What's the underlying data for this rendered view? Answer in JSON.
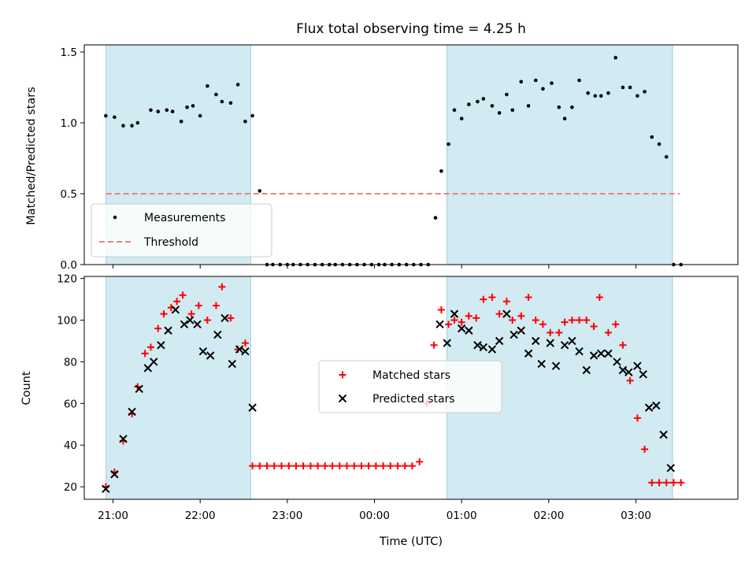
{
  "chart_data": [
    {
      "type": "scatter",
      "title": "Flux total observing time = 4.25 h",
      "ylabel": "Matched/Predicted stars",
      "xlabel": "",
      "ylim": [
        0,
        1.55
      ],
      "yticks": [
        "0.0",
        "0.5",
        "1.0",
        "1.5"
      ],
      "yticks_values": [
        0,
        0.5,
        1.0,
        1.5
      ],
      "x_ticks_hours": [
        21,
        22,
        23,
        24,
        25,
        26,
        27
      ],
      "x_range_hours": [
        20.67,
        28.17
      ],
      "shaded_regions_hours": [
        [
          20.92,
          22.58
        ],
        [
          24.83,
          27.42
        ]
      ],
      "shaded_color": "#add8e6",
      "legend": {
        "position": "lower-left",
        "entries": [
          "Measurements",
          "Threshold"
        ]
      },
      "series": [
        {
          "name": "Measurements",
          "marker": "dot",
          "color": "#000000",
          "x_hours": [
            20.917,
            21.017,
            21.117,
            21.217,
            21.283,
            21.433,
            21.517,
            21.617,
            21.683,
            21.783,
            21.85,
            21.917,
            22.0,
            22.083,
            22.183,
            22.25,
            22.35,
            22.433,
            22.517,
            22.6,
            22.683,
            22.767,
            22.833,
            22.917,
            23.0,
            23.067,
            23.15,
            23.233,
            23.317,
            23.4,
            23.483,
            23.55,
            23.633,
            23.717,
            23.8,
            23.883,
            23.967,
            24.05,
            24.117,
            24.2,
            24.283,
            24.367,
            24.45,
            24.533,
            24.617,
            24.7,
            24.767,
            24.85,
            24.917,
            25.0,
            25.083,
            25.183,
            25.25,
            25.35,
            25.433,
            25.517,
            25.583,
            25.683,
            25.767,
            25.85,
            25.933,
            26.033,
            26.117,
            26.183,
            26.267,
            26.35,
            26.45,
            26.533,
            26.6,
            26.683,
            26.767,
            26.85,
            26.933,
            27.017,
            27.1,
            27.183,
            27.267,
            27.35,
            27.433,
            27.517
          ],
          "y": [
            1.05,
            1.04,
            0.98,
            0.98,
            1.0,
            1.09,
            1.08,
            1.09,
            1.08,
            1.01,
            1.11,
            1.12,
            1.05,
            1.26,
            1.2,
            1.15,
            1.14,
            1.27,
            1.01,
            1.05,
            0.52,
            0,
            0,
            0,
            0,
            0,
            0,
            0,
            0,
            0,
            0,
            0,
            0,
            0,
            0,
            0,
            0,
            0,
            0,
            0,
            0,
            0,
            0,
            0,
            0,
            0.33,
            0.66,
            0.85,
            1.09,
            1.03,
            1.13,
            1.15,
            1.17,
            1.12,
            1.07,
            1.2,
            1.09,
            1.29,
            1.12,
            1.3,
            1.24,
            1.28,
            1.11,
            1.03,
            1.11,
            1.3,
            1.21,
            1.19,
            1.19,
            1.21,
            1.46,
            1.25,
            1.25,
            1.19,
            1.22,
            0.9,
            0.85,
            0.76,
            0,
            0
          ]
        },
        {
          "name": "Threshold",
          "style": "dashed",
          "color": "#f08080",
          "x_hours": [
            20.92,
            27.5
          ],
          "y": [
            0.5,
            0.5
          ]
        }
      ]
    },
    {
      "type": "scatter",
      "title": "",
      "ylabel": "Count",
      "xlabel": "Time (UTC)",
      "ylim": [
        14,
        121
      ],
      "yticks": [
        "20",
        "40",
        "60",
        "80",
        "100",
        "120"
      ],
      "yticks_values": [
        20,
        40,
        60,
        80,
        100,
        120
      ],
      "x_ticks_hours": [
        21,
        22,
        23,
        24,
        25,
        26,
        27
      ],
      "x_tick_labels": [
        "21:00",
        "22:00",
        "23:00",
        "00:00",
        "01:00",
        "02:00",
        "03:00"
      ],
      "x_range_hours": [
        20.67,
        28.17
      ],
      "shaded_regions_hours": [
        [
          20.92,
          22.58
        ],
        [
          24.83,
          27.42
        ]
      ],
      "shaded_color": "#add8e6",
      "legend": {
        "position": "center",
        "entries": [
          "Matched stars",
          "Predicted stars"
        ]
      },
      "series": [
        {
          "name": "Matched stars",
          "marker": "plus",
          "color": "#ff0000",
          "x_hours": [
            20.917,
            21.017,
            21.117,
            21.217,
            21.283,
            21.367,
            21.433,
            21.517,
            21.583,
            21.667,
            21.733,
            21.8,
            21.9,
            21.983,
            22.083,
            22.183,
            22.25,
            22.35,
            22.433,
            22.517,
            22.6,
            22.683,
            22.767,
            22.85,
            22.933,
            23.017,
            23.1,
            23.183,
            23.267,
            23.35,
            23.433,
            23.517,
            23.6,
            23.683,
            23.767,
            23.85,
            23.933,
            24.017,
            24.1,
            24.183,
            24.267,
            24.35,
            24.433,
            24.517,
            24.6,
            24.683,
            24.767,
            24.85,
            24.917,
            25.0,
            25.083,
            25.167,
            25.25,
            25.35,
            25.433,
            25.517,
            25.583,
            25.683,
            25.767,
            25.85,
            25.933,
            26.017,
            26.117,
            26.183,
            26.267,
            26.35,
            26.433,
            26.517,
            26.583,
            26.683,
            26.767,
            26.85,
            26.933,
            27.017,
            27.1,
            27.183,
            27.267,
            27.35,
            27.433,
            27.517
          ],
          "y": [
            20,
            27,
            42,
            55,
            68,
            84,
            87,
            96,
            103,
            106,
            109,
            112,
            103,
            107,
            100,
            107,
            116,
            101,
            86,
            89,
            30,
            30,
            30,
            30,
            30,
            30,
            30,
            30,
            30,
            30,
            30,
            30,
            30,
            30,
            30,
            30,
            30,
            30,
            30,
            30,
            30,
            30,
            30,
            32,
            60,
            88,
            105,
            98,
            100,
            99,
            102,
            101,
            110,
            111,
            103,
            109,
            100,
            102,
            111,
            100,
            98,
            94,
            94,
            99,
            100,
            100,
            100,
            97,
            111,
            94,
            98,
            88,
            71,
            53,
            38,
            22,
            22,
            22,
            22,
            22
          ]
        },
        {
          "name": "Predicted stars",
          "marker": "x",
          "color": "#000000",
          "x_hours": [
            20.917,
            21.017,
            21.117,
            21.217,
            21.3,
            21.4,
            21.467,
            21.55,
            21.633,
            21.717,
            21.817,
            21.883,
            21.967,
            22.033,
            22.117,
            22.2,
            22.283,
            22.367,
            22.45,
            22.517,
            22.6,
            24.75,
            24.833,
            24.917,
            25.0,
            25.083,
            25.183,
            25.25,
            25.35,
            25.433,
            25.517,
            25.6,
            25.683,
            25.767,
            25.85,
            25.917,
            26.017,
            26.083,
            26.183,
            26.267,
            26.35,
            26.433,
            26.517,
            26.6,
            26.683,
            26.783,
            26.85,
            26.917,
            27.017,
            27.083,
            27.15,
            27.233,
            27.317,
            27.4
          ],
          "y": [
            19,
            26,
            43,
            56,
            67,
            77,
            80,
            88,
            95,
            105,
            98,
            100,
            98,
            85,
            83,
            93,
            101,
            79,
            86,
            85,
            58,
            98,
            89,
            103,
            96,
            95,
            88,
            87,
            86,
            90,
            103,
            93,
            95,
            84,
            90,
            79,
            89,
            78,
            88,
            90,
            85,
            76,
            83,
            84,
            84,
            80,
            76,
            75,
            78,
            74,
            58,
            59,
            45,
            29
          ]
        }
      ]
    }
  ]
}
